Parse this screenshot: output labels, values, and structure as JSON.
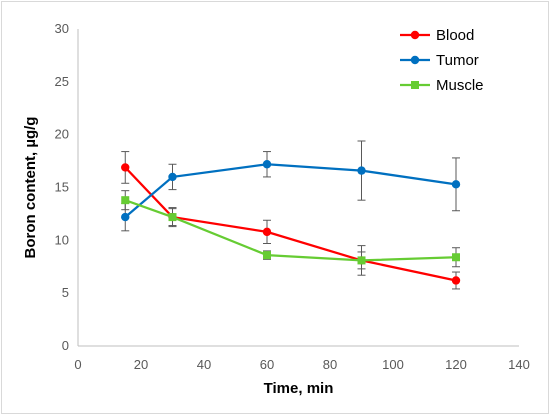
{
  "chart_data": {
    "type": "line",
    "title": "",
    "xlabel": "Time, min",
    "ylabel": "Boron content, µg/g",
    "xlim": [
      0,
      140
    ],
    "ylim": [
      0,
      30
    ],
    "x_ticks": [
      0,
      20,
      40,
      60,
      80,
      100,
      120,
      140
    ],
    "y_ticks": [
      0,
      5,
      10,
      15,
      20,
      25,
      30
    ],
    "x_tick_labels": [
      "0",
      "20",
      "40",
      "60",
      "80",
      "100",
      "120",
      "140"
    ],
    "y_tick_labels": [
      "0",
      "5",
      "10",
      "15",
      "20",
      "25",
      "30"
    ],
    "grid": false,
    "legend_position": "top-right",
    "x": [
      15,
      30,
      60,
      90,
      120
    ],
    "series": [
      {
        "name": "Blood",
        "color": "#ff0000",
        "marker": "circle",
        "values": [
          16.9,
          12.2,
          10.8,
          8.1,
          6.2
        ],
        "errors": [
          1.5,
          0.8,
          1.1,
          1.4,
          0.8
        ]
      },
      {
        "name": "Tumor",
        "color": "#0070c0",
        "marker": "circle",
        "values": [
          12.2,
          16.0,
          17.2,
          16.6,
          15.3
        ],
        "errors": [
          1.3,
          1.2,
          1.2,
          2.8,
          2.5
        ]
      },
      {
        "name": "Muscle",
        "color": "#66cc33",
        "marker": "square",
        "values": [
          13.8,
          12.2,
          8.6,
          8.1,
          8.4
        ],
        "errors": [
          0.9,
          0.9,
          0.4,
          0.8,
          0.9
        ]
      }
    ]
  }
}
